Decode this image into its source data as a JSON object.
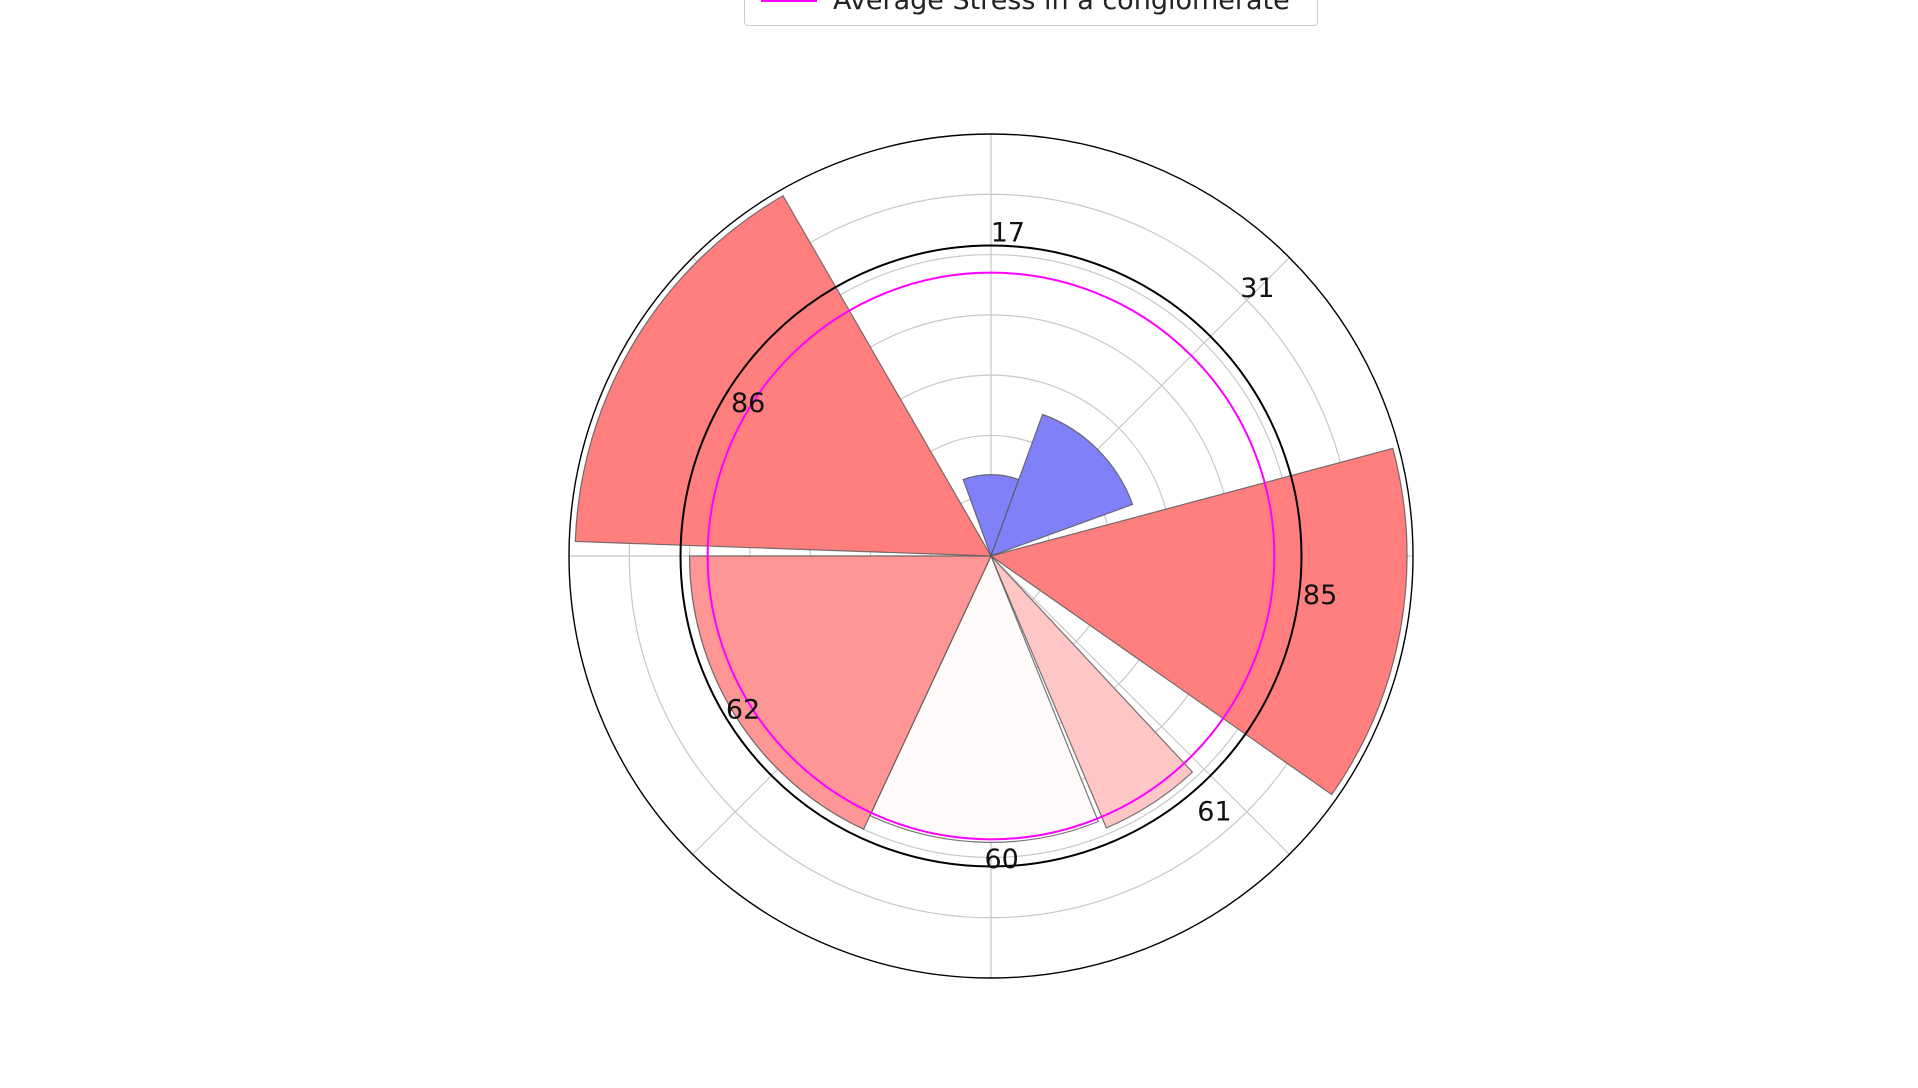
{
  "chart_data": {
    "type": "polar-bar",
    "title": "",
    "legend": {
      "placement": "top-center",
      "entries": [
        {
          "label": "Average Stress in a conglomerate",
          "color": "#ff00ff",
          "style": "line"
        }
      ]
    },
    "radial_range": [
      0,
      140
    ],
    "radial_grid_step": 20,
    "grid": true,
    "reference_circle": {
      "value": 103,
      "color": "#000000"
    },
    "average_circle": {
      "value": 94,
      "color": "#ff00ff"
    },
    "bars": [
      {
        "label": "17",
        "value": 27,
        "theta_start": 340,
        "theta_end": 20,
        "color": "#8080f8"
      },
      {
        "label": "31",
        "value": 50,
        "theta_start": 20,
        "theta_end": 70,
        "color": "#8080f8"
      },
      {
        "label": "85",
        "value": 138,
        "theta_start": 75,
        "theta_end": 125,
        "color": "#ff7f7f"
      },
      {
        "label": "61",
        "value": 98,
        "theta_start": 137,
        "theta_end": 157,
        "color": "#ffc6c6"
      },
      {
        "label": "60",
        "value": 95,
        "theta_start": 158,
        "theta_end": 205,
        "color": "#fffafa"
      },
      {
        "label": "62",
        "value": 100,
        "theta_start": 205,
        "theta_end": 270,
        "color": "#fe9696"
      },
      {
        "label": "86",
        "value": 138,
        "theta_start": 272,
        "theta_end": 330,
        "color": "#ff7f7f"
      }
    ],
    "bar_labels": [
      {
        "text": "17",
        "theta": 3,
        "r": 107
      },
      {
        "text": "31",
        "theta": 45,
        "r": 125
      },
      {
        "text": "85",
        "theta": 97,
        "r": 110
      },
      {
        "text": "61",
        "theta": 139,
        "r": 113
      },
      {
        "text": "60",
        "theta": 178,
        "r": 101
      },
      {
        "text": "62",
        "theta": 238,
        "r": 97
      },
      {
        "text": "86",
        "theta": 302,
        "r": 95
      }
    ]
  }
}
